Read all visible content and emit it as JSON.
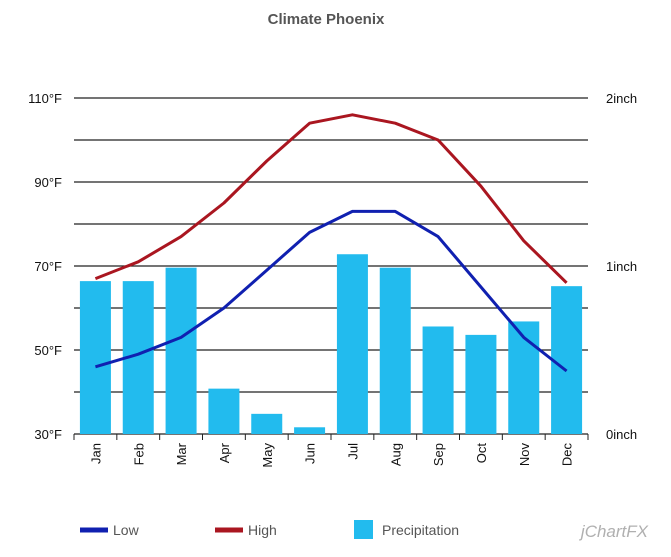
{
  "chart_data": {
    "type": "bar+line",
    "title": "Climate Phoenix",
    "categories": [
      "Jan",
      "Feb",
      "Mar",
      "Apr",
      "May",
      "Jun",
      "Jul",
      "Aug",
      "Sep",
      "Oct",
      "Nov",
      "Dec"
    ],
    "y_left": {
      "min": 30,
      "max": 110,
      "ticks": [
        "30°F",
        "50°F",
        "70°F",
        "90°F",
        "110°F"
      ],
      "tick_values": [
        30,
        50,
        70,
        90,
        110
      ]
    },
    "y_right": {
      "min": 0,
      "max": 2,
      "ticks": [
        "0inch",
        "1inch",
        "2inch"
      ],
      "tick_values": [
        0,
        1,
        2
      ]
    },
    "series": [
      {
        "name": "Precipitation",
        "kind": "bar",
        "axis": "right",
        "color": "#22bbee",
        "values": [
          0.91,
          0.91,
          0.99,
          0.27,
          0.12,
          0.04,
          1.07,
          0.99,
          0.64,
          0.59,
          0.67,
          0.88
        ]
      },
      {
        "name": "Low",
        "kind": "line",
        "axis": "left",
        "color": "#1020b0",
        "values": [
          46,
          49,
          53,
          60,
          69,
          78,
          83,
          83,
          77,
          65,
          53,
          45
        ]
      },
      {
        "name": "High",
        "kind": "line",
        "axis": "left",
        "color": "#aa1620",
        "values": [
          67,
          71,
          77,
          85,
          95,
          104,
          106,
          104,
          100,
          89,
          76,
          66
        ]
      }
    ],
    "grid": true,
    "legend_placement": "bottom"
  },
  "legend": {
    "low_label": "Low",
    "high_label": "High",
    "precip_label": "Precipitation"
  },
  "branding": {
    "logo_text": "jChartFX"
  }
}
